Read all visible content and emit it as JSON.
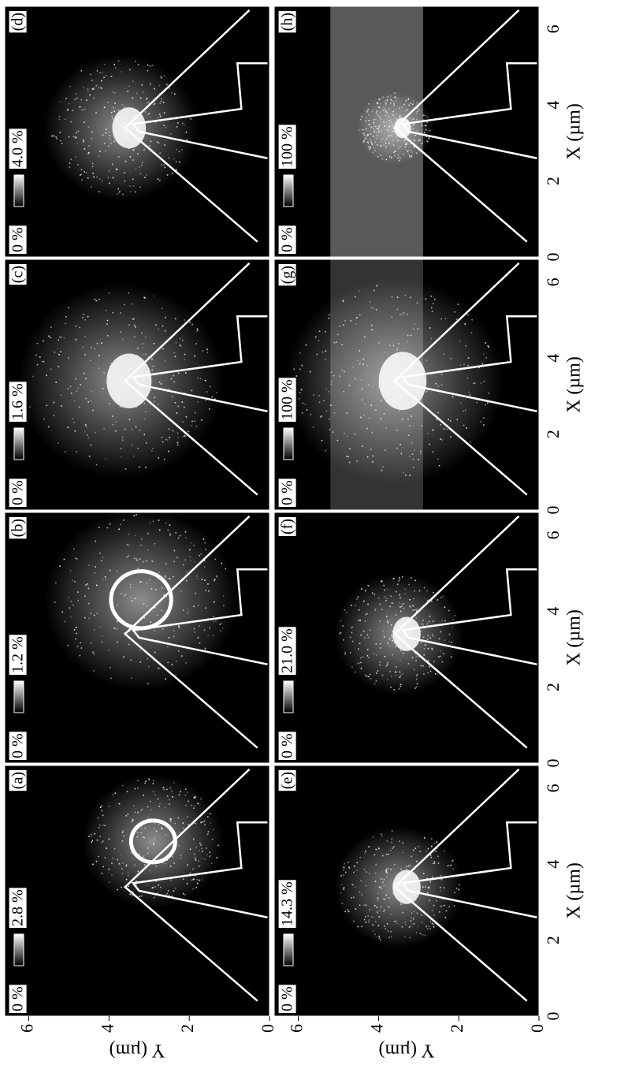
{
  "panels": [
    {
      "label": "(a)",
      "min": "0 %",
      "max": "2.8 %"
    },
    {
      "label": "(b)",
      "min": "0 %",
      "max": "1.2 %"
    },
    {
      "label": "(c)",
      "min": "0 %",
      "max": "1.6 %"
    },
    {
      "label": "(d)",
      "min": "0 %",
      "max": "4.0 %"
    },
    {
      "label": "(e)",
      "min": "0 %",
      "max": "14.3 %"
    },
    {
      "label": "(f)",
      "min": "0 %",
      "max": "21.0 %"
    },
    {
      "label": "(g)",
      "min": "0 %",
      "max": "100 %"
    },
    {
      "label": "(h)",
      "min": "0 %",
      "max": "100 %"
    }
  ],
  "x_axis": {
    "title": "X (µm)",
    "ticks": [
      "0",
      "2",
      "4",
      "6"
    ]
  },
  "y_axis": {
    "title": "Y (µm)",
    "ticks": [
      "0",
      "2",
      "4",
      "6"
    ]
  }
}
